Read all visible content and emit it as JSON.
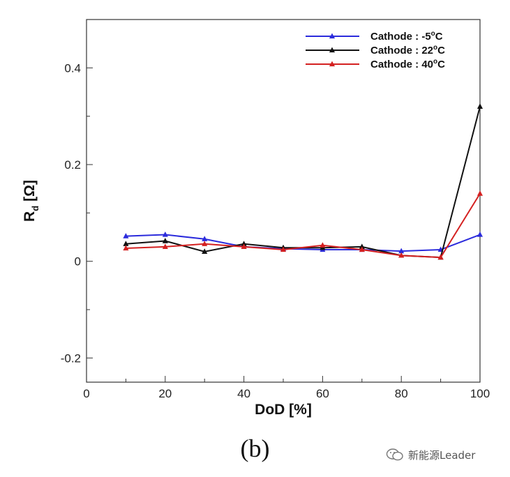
{
  "chart_data": {
    "type": "line",
    "title": "",
    "xlabel": "DoD [%]",
    "ylabel": "R_d [Ω]",
    "ylabel_main": "R",
    "ylabel_sub": "d",
    "ylabel_unit": "[Ω]",
    "xlim": [
      0,
      100
    ],
    "ylim": [
      -0.25,
      0.5
    ],
    "xticks": [
      "0",
      "20",
      "40",
      "60",
      "80",
      "100"
    ],
    "yticks": [
      "-0.2",
      "0",
      "0.2",
      "0.4"
    ],
    "x": [
      10,
      20,
      30,
      40,
      50,
      60,
      70,
      80,
      90,
      100
    ],
    "legend_position": "top-right",
    "series": [
      {
        "name": "Cathode : -5°C",
        "name_base": "Cathode : -5",
        "name_unit": "C",
        "color": "#2b2bdc",
        "values": [
          0.052,
          0.055,
          0.046,
          0.03,
          0.026,
          0.024,
          0.024,
          0.021,
          0.024,
          0.055
        ]
      },
      {
        "name": "Cathode : 22°C",
        "name_base": "Cathode : 22",
        "name_unit": "C",
        "color": "#111111",
        "values": [
          0.036,
          0.042,
          0.02,
          0.036,
          0.028,
          0.028,
          0.03,
          0.012,
          0.008,
          0.32
        ]
      },
      {
        "name": "Cathode : 40°C",
        "name_base": "Cathode : 40",
        "name_unit": "C",
        "color": "#d42020",
        "values": [
          0.027,
          0.03,
          0.036,
          0.03,
          0.024,
          0.033,
          0.024,
          0.012,
          0.008,
          0.14
        ]
      }
    ],
    "degree_symbol": "o"
  },
  "caption": "(b)",
  "watermark": {
    "icon": "wechat-icon",
    "text": "新能源Leader"
  }
}
